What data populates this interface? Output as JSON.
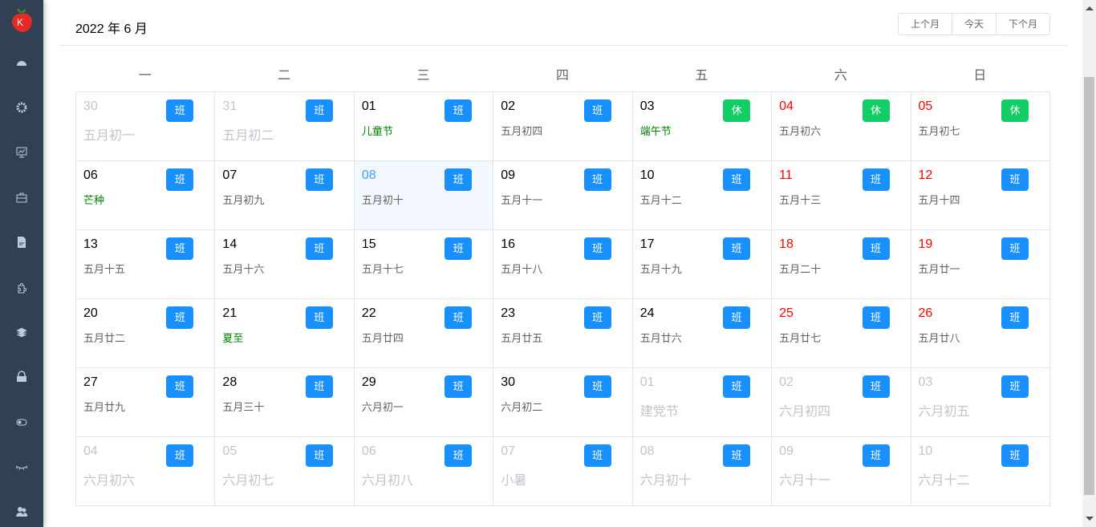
{
  "sidebar": {
    "icons": [
      "dashboard-icon",
      "gear-icon",
      "monitor-chart-icon",
      "briefcase-icon",
      "document-icon",
      "puzzle-icon",
      "layers-icon",
      "lock-icon",
      "toggle-icon",
      "eye-closed-icon",
      "users-icon"
    ]
  },
  "header": {
    "title": "2022 年 6 月",
    "prev": "上个月",
    "today": "今天",
    "next": "下个月"
  },
  "weekdays": [
    "一",
    "二",
    "三",
    "四",
    "五",
    "六",
    "日"
  ],
  "colors": {
    "work": "#1890ff",
    "rest": "#13ce66",
    "weekend": "#ff0000",
    "festival": "#008000",
    "selected": "#409eff"
  },
  "weeks": [
    [
      {
        "day": "30",
        "lunar": "五月初一",
        "badge": "班",
        "other": true
      },
      {
        "day": "31",
        "lunar": "五月初二",
        "badge": "班",
        "other": true
      },
      {
        "day": "01",
        "lunar": "儿童节",
        "badge": "班",
        "fest": true
      },
      {
        "day": "02",
        "lunar": "五月初四",
        "badge": "班"
      },
      {
        "day": "03",
        "lunar": "端午节",
        "badge": "休",
        "fest": true
      },
      {
        "day": "04",
        "lunar": "五月初六",
        "badge": "休",
        "weekend": true
      },
      {
        "day": "05",
        "lunar": "五月初七",
        "badge": "休",
        "weekend": true
      }
    ],
    [
      {
        "day": "06",
        "lunar": "芒种",
        "badge": "班",
        "fest": true
      },
      {
        "day": "07",
        "lunar": "五月初九",
        "badge": "班"
      },
      {
        "day": "08",
        "lunar": "五月初十",
        "badge": "班",
        "selected": true
      },
      {
        "day": "09",
        "lunar": "五月十一",
        "badge": "班"
      },
      {
        "day": "10",
        "lunar": "五月十二",
        "badge": "班"
      },
      {
        "day": "11",
        "lunar": "五月十三",
        "badge": "班",
        "weekend": true
      },
      {
        "day": "12",
        "lunar": "五月十四",
        "badge": "班",
        "weekend": true
      }
    ],
    [
      {
        "day": "13",
        "lunar": "五月十五",
        "badge": "班"
      },
      {
        "day": "14",
        "lunar": "五月十六",
        "badge": "班"
      },
      {
        "day": "15",
        "lunar": "五月十七",
        "badge": "班"
      },
      {
        "day": "16",
        "lunar": "五月十八",
        "badge": "班"
      },
      {
        "day": "17",
        "lunar": "五月十九",
        "badge": "班"
      },
      {
        "day": "18",
        "lunar": "五月二十",
        "badge": "班",
        "weekend": true
      },
      {
        "day": "19",
        "lunar": "五月廿一",
        "badge": "班",
        "weekend": true
      }
    ],
    [
      {
        "day": "20",
        "lunar": "五月廿二",
        "badge": "班"
      },
      {
        "day": "21",
        "lunar": "夏至",
        "badge": "班",
        "fest": true
      },
      {
        "day": "22",
        "lunar": "五月廿四",
        "badge": "班"
      },
      {
        "day": "23",
        "lunar": "五月廿五",
        "badge": "班"
      },
      {
        "day": "24",
        "lunar": "五月廿六",
        "badge": "班"
      },
      {
        "day": "25",
        "lunar": "五月廿七",
        "badge": "班",
        "weekend": true
      },
      {
        "day": "26",
        "lunar": "五月廿八",
        "badge": "班",
        "weekend": true
      }
    ],
    [
      {
        "day": "27",
        "lunar": "五月廿九",
        "badge": "班"
      },
      {
        "day": "28",
        "lunar": "五月三十",
        "badge": "班"
      },
      {
        "day": "29",
        "lunar": "六月初一",
        "badge": "班"
      },
      {
        "day": "30",
        "lunar": "六月初二",
        "badge": "班"
      },
      {
        "day": "01",
        "lunar": "建党节",
        "badge": "班",
        "other": true,
        "fest": true
      },
      {
        "day": "02",
        "lunar": "六月初四",
        "badge": "班",
        "other": true
      },
      {
        "day": "03",
        "lunar": "六月初五",
        "badge": "班",
        "other": true
      }
    ],
    [
      {
        "day": "04",
        "lunar": "六月初六",
        "badge": "班",
        "other": true
      },
      {
        "day": "05",
        "lunar": "六月初七",
        "badge": "班",
        "other": true
      },
      {
        "day": "06",
        "lunar": "六月初八",
        "badge": "班",
        "other": true
      },
      {
        "day": "07",
        "lunar": "小暑",
        "badge": "班",
        "other": true,
        "fest": true
      },
      {
        "day": "08",
        "lunar": "六月初十",
        "badge": "班",
        "other": true
      },
      {
        "day": "09",
        "lunar": "六月十一",
        "badge": "班",
        "other": true
      },
      {
        "day": "10",
        "lunar": "六月十二",
        "badge": "班",
        "other": true
      }
    ]
  ]
}
